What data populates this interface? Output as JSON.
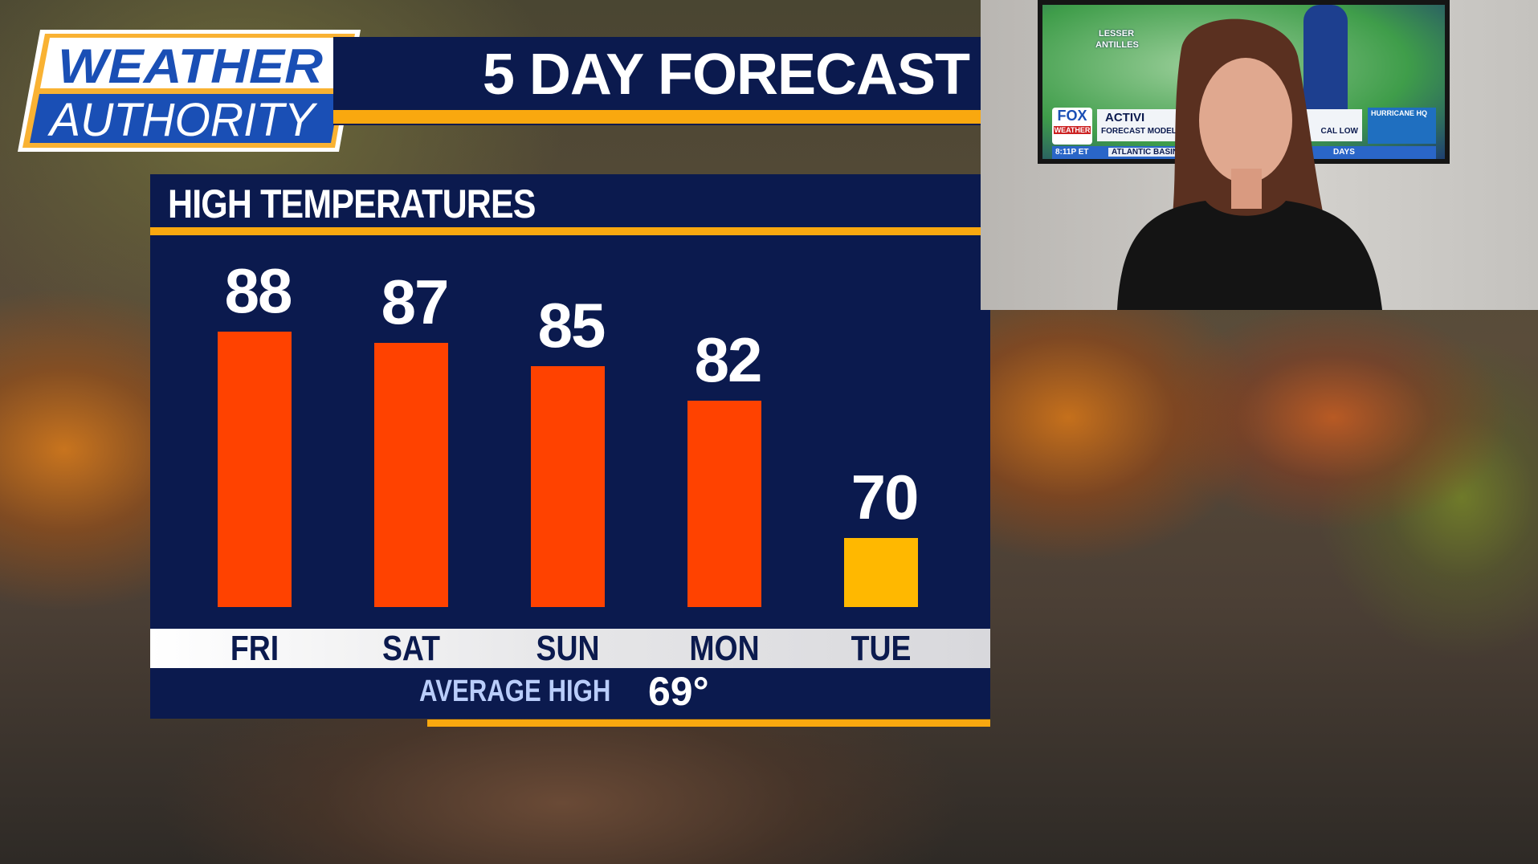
{
  "logo": {
    "line1": "WEATHER",
    "line2": "AUTHORITY"
  },
  "banner": {
    "title": "5 DAY FORECAST"
  },
  "panel": {
    "title": "HIGH TEMPERATURES"
  },
  "colors": {
    "navy": "#0b1a4e",
    "orange_accent": "#f9a80f",
    "bar_hot": "#ff4200",
    "bar_near_avg": "#ffb800",
    "logo_blue": "#1a4fb5"
  },
  "chart_data": {
    "type": "bar",
    "title": "HIGH TEMPERATURES",
    "categories": [
      "FRI",
      "SAT",
      "SUN",
      "MON",
      "TUE"
    ],
    "values": [
      88,
      87,
      85,
      82,
      70
    ],
    "value_labels": [
      "88",
      "87",
      "85",
      "82",
      "70"
    ],
    "bar_colors": [
      "#ff4200",
      "#ff4200",
      "#ff4200",
      "#ff4200",
      "#ffb800"
    ],
    "reference": {
      "label": "AVERAGE HIGH",
      "value": 69,
      "display": "69°"
    }
  },
  "inset": {
    "tv": {
      "map_label1": "LESSER",
      "map_label2": "ANTILLES",
      "brand1": "FOX",
      "brand2": "WEATHER",
      "headline": "ACTIVI",
      "subline_left": "FORECAST MODELS",
      "subline_right": "CAL LOW",
      "badge": "HURRICANE HQ",
      "time": "8:11P ET",
      "ticker": "ATLANTIC BASIN",
      "ticker_right": "DAYS"
    }
  }
}
